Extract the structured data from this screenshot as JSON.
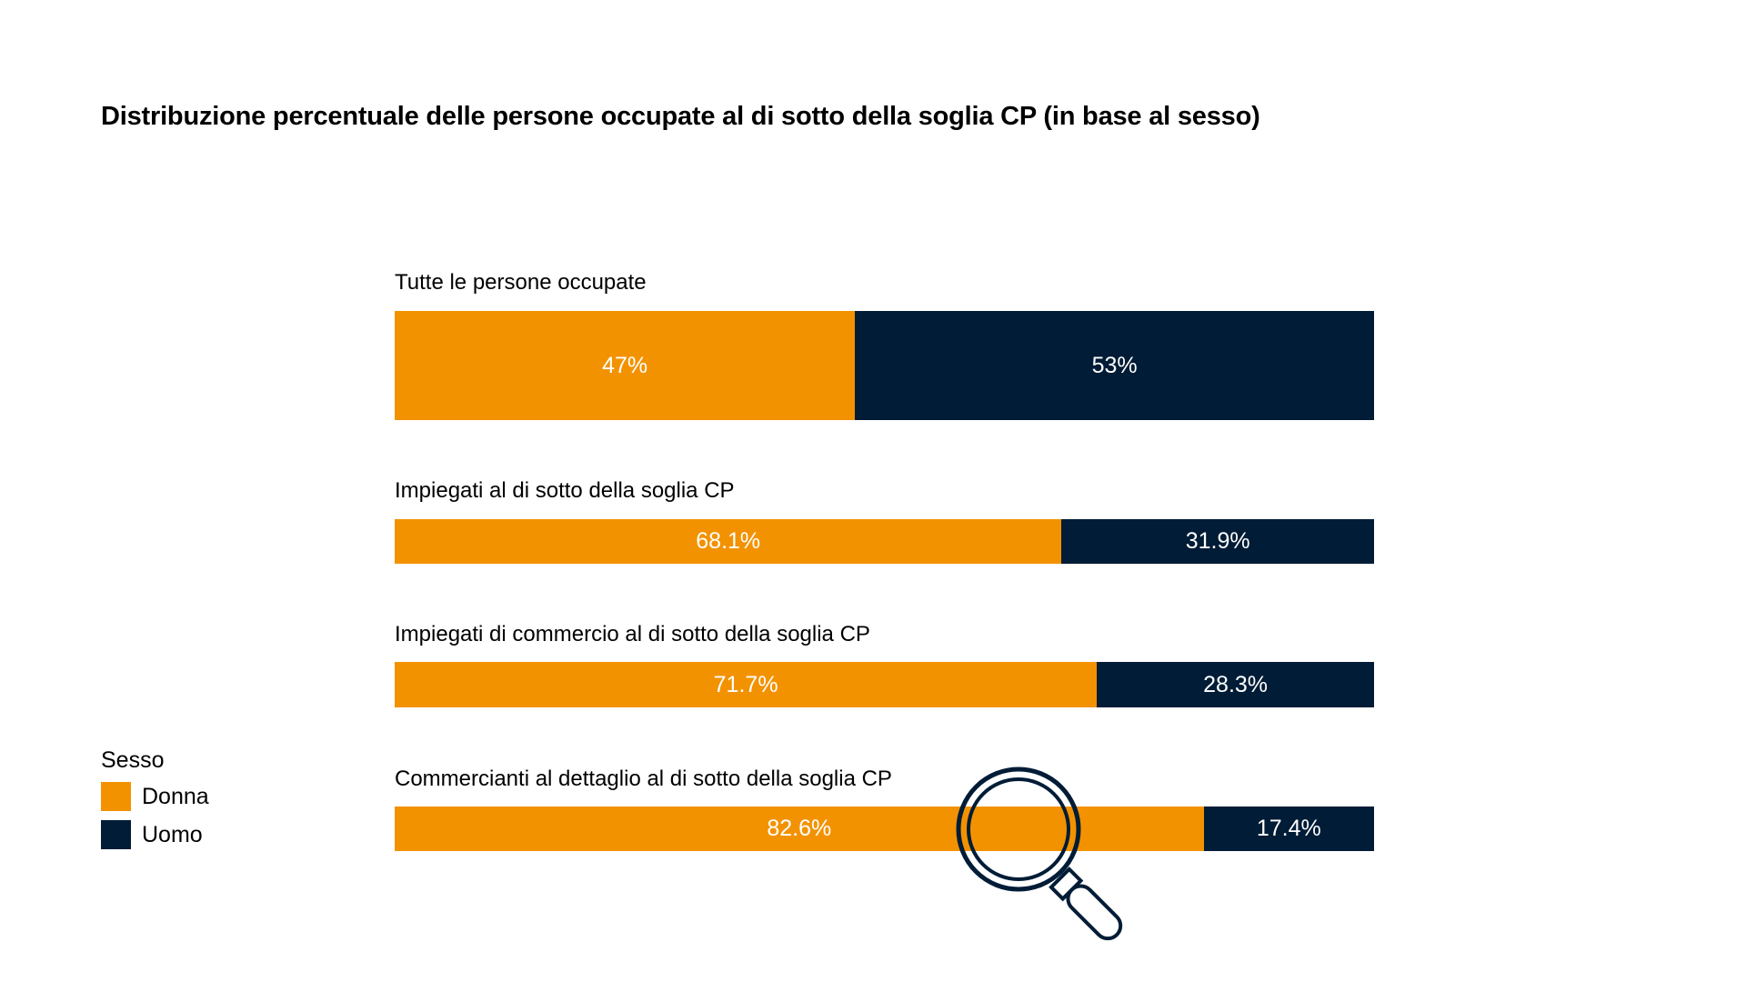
{
  "colors": {
    "Donna": "#F39200",
    "Uomo": "#001C36"
  },
  "chart_data": {
    "type": "bar",
    "stacked": true,
    "orientation": "horizontal",
    "title": "Distribuzione percentuale delle persone occupate al di sotto della soglia CP (in base al sesso)",
    "categories": [
      "Tutte le persone occupate",
      "Impiegati al di sotto della soglia CP",
      "Impiegati di commercio al di sotto della soglia CP",
      "Commercianti al dettaglio al di sotto della soglia CP"
    ],
    "series": [
      {
        "name": "Donna",
        "values": [
          47,
          68.1,
          71.7,
          82.6
        ],
        "labels": [
          "47%",
          "68.1%",
          "71.7%",
          "82.6%"
        ]
      },
      {
        "name": "Uomo",
        "values": [
          53,
          31.9,
          28.3,
          17.4
        ],
        "labels": [
          "53%",
          "31.9%",
          "28.3%",
          "17.4%"
        ]
      }
    ],
    "legend": {
      "title": "Sesso",
      "entries": [
        "Donna",
        "Uomo"
      ],
      "placement": "bottom-left"
    },
    "xlim": [
      0,
      100
    ]
  }
}
